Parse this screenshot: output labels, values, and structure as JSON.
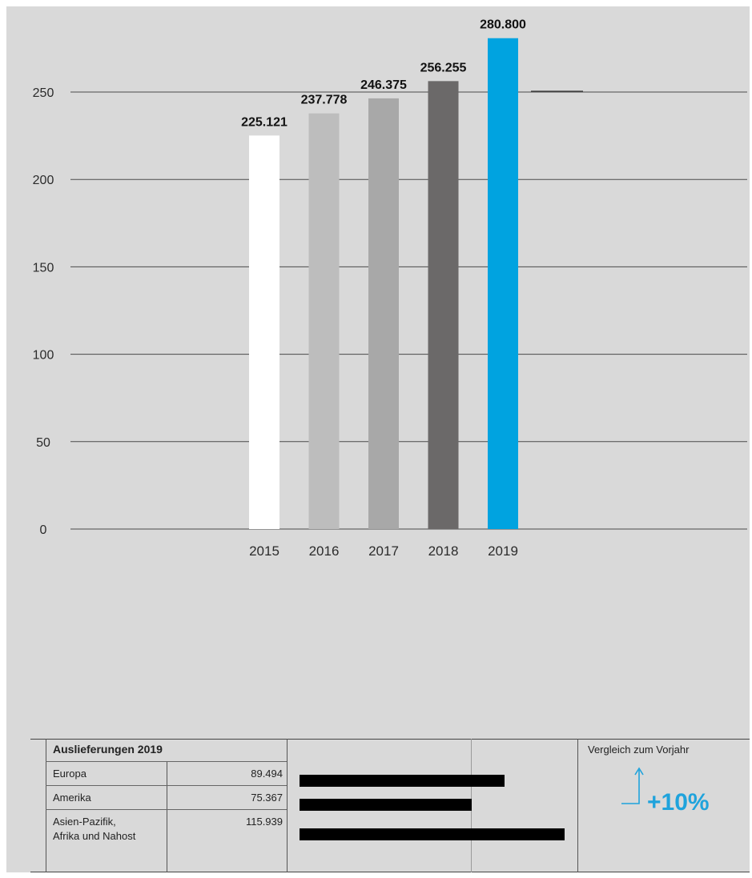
{
  "colors": {
    "background": "#d9d9d9",
    "accent": "#00a3e0",
    "bars": [
      "#ffffff",
      "#bdbdbd",
      "#a8a8a8",
      "#6b6969",
      "#00a3e0"
    ]
  },
  "chart_data": {
    "type": "bar",
    "categories": [
      "2015",
      "2016",
      "2017",
      "2018",
      "2019"
    ],
    "values": [
      225.121,
      237.778,
      246.375,
      256.255,
      280.8
    ],
    "data_labels": [
      "225.121",
      "237.778",
      "246.375",
      "256.255",
      "280.800"
    ],
    "yticks": [
      "0",
      "50",
      "100",
      "150",
      "200",
      "250"
    ],
    "ylim": [
      0,
      280
    ],
    "grid": true
  },
  "table": {
    "title": "Auslieferungen 2019",
    "rows": [
      {
        "region": "Europa",
        "value": "89.494",
        "amount": 89.494
      },
      {
        "region": "Amerika",
        "value": "75.367",
        "amount": 75.367
      },
      {
        "region_line1": "Asien-Pazifik,",
        "region_line2": "Afrika und Nahost",
        "value": "115.939",
        "amount": 115.939
      }
    ],
    "compare_label": "Vergleich zum Vorjahr",
    "change": "+10%",
    "change_icon": "up-arrow-icon"
  }
}
